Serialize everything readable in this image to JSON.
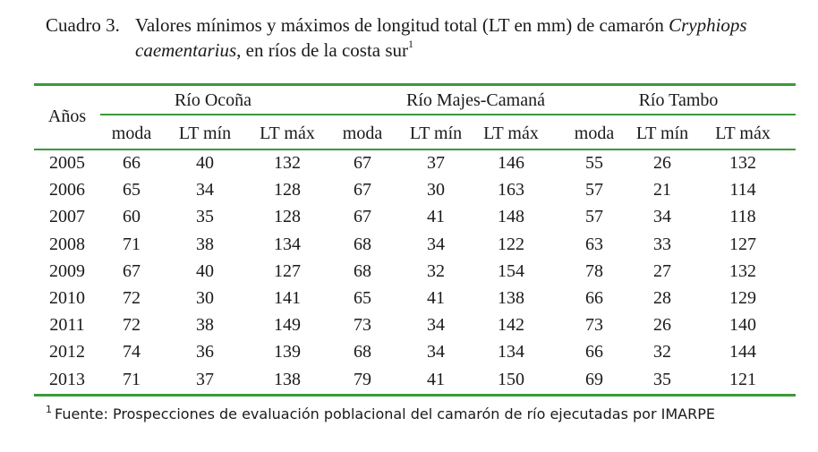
{
  "caption": {
    "label": "Cuadro 3.",
    "text_line1": "Valores mínimos y máximos de longitud total (LT en mm) de camarón ",
    "species_part1": "Cryphiops",
    "species_part2": "caementarius",
    "text_line2": ", en ríos de la costa sur",
    "footnote_ref": "1"
  },
  "table": {
    "row_header": "Años",
    "groups": [
      "Río Ocoña",
      "Río Majes-Camaná",
      "Río Tambo"
    ],
    "subheaders": [
      "moda",
      "LT mín",
      "LT máx",
      "moda",
      "LT mín",
      "LT máx",
      "moda",
      "LT mín",
      "LT máx"
    ],
    "rows": [
      [
        "2005",
        "66",
        "40",
        "132",
        "67",
        "37",
        "146",
        "55",
        "26",
        "132"
      ],
      [
        "2006",
        "65",
        "34",
        "128",
        "67",
        "30",
        "163",
        "57",
        "21",
        "114"
      ],
      [
        "2007",
        "60",
        "35",
        "128",
        "67",
        "41",
        "148",
        "57",
        "34",
        "118"
      ],
      [
        "2008",
        "71",
        "38",
        "134",
        "68",
        "34",
        "122",
        "63",
        "33",
        "127"
      ],
      [
        "2009",
        "67",
        "40",
        "127",
        "68",
        "32",
        "154",
        "78",
        "27",
        "132"
      ],
      [
        "2010",
        "72",
        "30",
        "141",
        "65",
        "41",
        "138",
        "66",
        "28",
        "129"
      ],
      [
        "2011",
        "72",
        "38",
        "149",
        "73",
        "34",
        "142",
        "73",
        "26",
        "140"
      ],
      [
        "2012",
        "74",
        "36",
        "139",
        "68",
        "34",
        "134",
        "66",
        "32",
        "144"
      ],
      [
        "2013",
        "71",
        "37",
        "138",
        "79",
        "41",
        "150",
        "69",
        "35",
        "121"
      ]
    ]
  },
  "footnote": {
    "marker": "1",
    "text": "Fuente: Prospecciones de evaluación poblacional del camarón de río ejecutadas por IMARPE"
  },
  "colors": {
    "rule": "#3a9a3a",
    "text": "#1a1a1a"
  }
}
